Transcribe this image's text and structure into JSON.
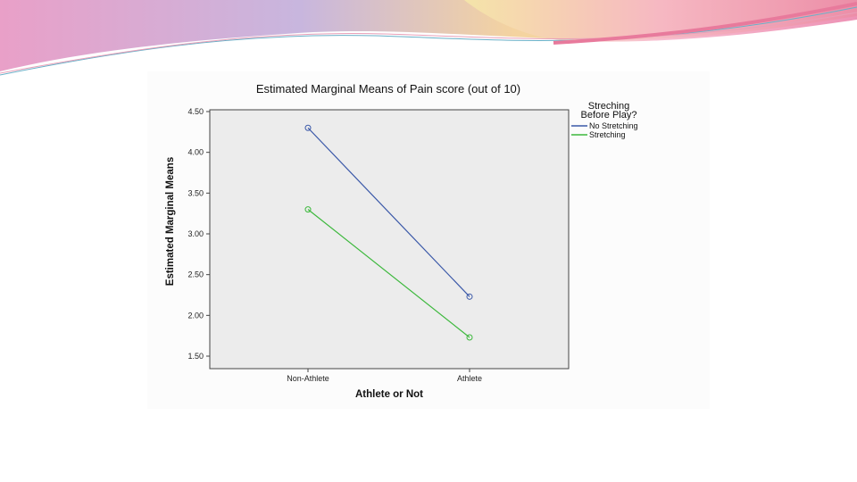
{
  "chart_data": {
    "type": "line",
    "title": "Estimated Marginal Means of Pain score (out of 10)",
    "xlabel": "Athlete or Not",
    "ylabel": "Estimated Marginal Means",
    "categories": [
      "Non-Athlete",
      "Athlete"
    ],
    "ylim": [
      1.5,
      4.5
    ],
    "yticks": [
      "1.50",
      "2.00",
      "2.50",
      "3.00",
      "3.50",
      "4.00",
      "4.50"
    ],
    "grid": false,
    "legend_title": [
      "Streching",
      "Before Play?"
    ],
    "legend_position": "top-right",
    "series": [
      {
        "name": "No Stretching",
        "values": [
          4.3,
          2.23
        ],
        "color": "#3a58a8"
      },
      {
        "name": "Stretching",
        "values": [
          3.3,
          1.73
        ],
        "color": "#3cb83c"
      }
    ]
  },
  "colors": {
    "plot_background": "#ececec",
    "decor_pink": "#e889b4",
    "decor_yellow": "#f6e2a0"
  }
}
